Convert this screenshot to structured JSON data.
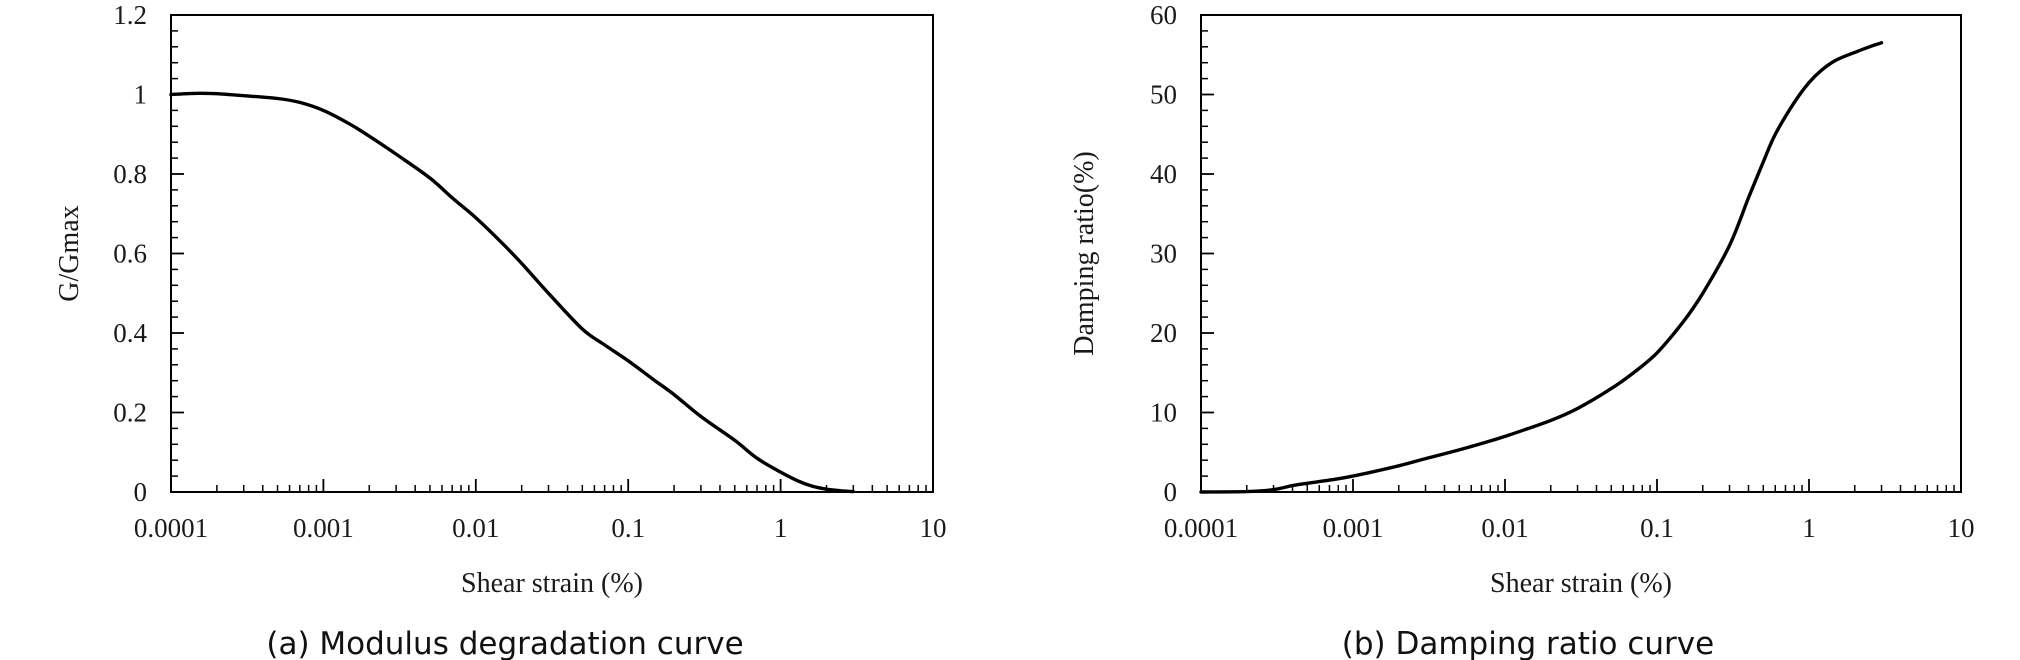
{
  "chart_data": [
    {
      "type": "line",
      "caption": "(a) Modulus degradation curve",
      "xlabel": "Shear strain (%)",
      "ylabel": "G/Gmax",
      "xscale": "log",
      "xlim": [
        0.0001,
        10
      ],
      "ylim": [
        0,
        1.2
      ],
      "xticks": [
        0.0001,
        0.001,
        0.01,
        0.1,
        1,
        10
      ],
      "xtick_labels": [
        "0.0001",
        "0.001",
        "0.01",
        "0.1",
        "1",
        "10"
      ],
      "yticks": [
        0,
        0.2,
        0.4,
        0.6,
        0.8,
        1,
        1.2
      ],
      "ytick_labels": [
        "0",
        "0.2",
        "0.4",
        "0.6",
        "0.8",
        "1",
        "1.2"
      ],
      "grid": false,
      "legend": "none",
      "series": [
        {
          "name": "G/Gmax",
          "color": "#000000",
          "x": [
            0.0001,
            0.00015,
            0.0002,
            0.0003,
            0.0005,
            0.0007,
            0.001,
            0.0015,
            0.002,
            0.003,
            0.005,
            0.007,
            0.01,
            0.015,
            0.02,
            0.03,
            0.05,
            0.07,
            0.1,
            0.15,
            0.2,
            0.3,
            0.5,
            0.7,
            1,
            1.3,
            1.6,
            2,
            2.5,
            3
          ],
          "y": [
            1.0,
            1.003,
            1.002,
            0.997,
            0.99,
            0.98,
            0.96,
            0.925,
            0.895,
            0.85,
            0.79,
            0.74,
            0.69,
            0.625,
            0.575,
            0.5,
            0.41,
            0.37,
            0.33,
            0.28,
            0.245,
            0.19,
            0.13,
            0.085,
            0.05,
            0.028,
            0.015,
            0.007,
            0.003,
            0.001
          ]
        }
      ]
    },
    {
      "type": "line",
      "caption": "(b) Damping ratio curve",
      "xlabel": "Shear strain (%)",
      "ylabel": "Damping ratio(%)",
      "xscale": "log",
      "xlim": [
        0.0001,
        10
      ],
      "ylim": [
        0,
        60
      ],
      "xticks": [
        0.0001,
        0.001,
        0.01,
        0.1,
        1,
        10
      ],
      "xtick_labels": [
        "0.0001",
        "0.001",
        "0.01",
        "0.1",
        "1",
        "10"
      ],
      "yticks": [
        0,
        10,
        20,
        30,
        40,
        50,
        60
      ],
      "ytick_labels": [
        "0",
        "10",
        "20",
        "30",
        "40",
        "50",
        "60"
      ],
      "grid": false,
      "legend": "none",
      "series": [
        {
          "name": "Damping ratio",
          "color": "#000000",
          "x": [
            0.0001,
            0.0002,
            0.0003,
            0.0004,
            0.0005,
            0.0007,
            0.001,
            0.002,
            0.003,
            0.005,
            0.007,
            0.01,
            0.02,
            0.03,
            0.05,
            0.07,
            0.1,
            0.15,
            0.2,
            0.3,
            0.4,
            0.5,
            0.6,
            0.8,
            1,
            1.2,
            1.5,
            2,
            2.5,
            3
          ],
          "y": [
            0,
            0.05,
            0.3,
            0.8,
            1.1,
            1.5,
            2.0,
            3.3,
            4.2,
            5.3,
            6.1,
            7.0,
            9.0,
            10.5,
            13.0,
            15.0,
            17.5,
            21.5,
            25.0,
            31.0,
            37.0,
            41.5,
            45.0,
            49.0,
            51.5,
            53.0,
            54.3,
            55.3,
            56.0,
            56.5
          ]
        }
      ]
    }
  ]
}
